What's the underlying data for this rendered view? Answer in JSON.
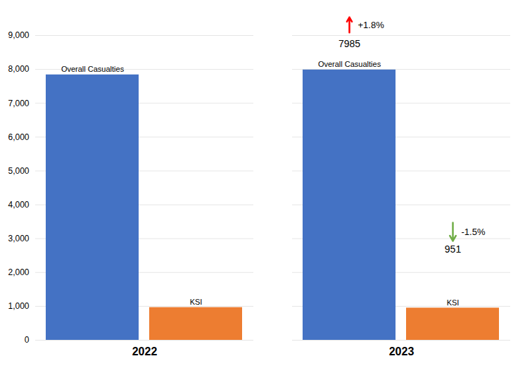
{
  "chart_data": {
    "type": "bar",
    "categories": [
      "2022",
      "2023"
    ],
    "series": [
      {
        "name": "Overall Casualties",
        "color": "#4472C4",
        "values": [
          7840,
          7985
        ]
      },
      {
        "name": "KSI",
        "color": "#ED7D31",
        "values": [
          966,
          951
        ]
      }
    ],
    "ylim": [
      0,
      9000
    ],
    "yticks": [
      0,
      1000,
      2000,
      3000,
      4000,
      5000,
      6000,
      7000,
      8000,
      9000
    ],
    "grid": true,
    "annotations": [
      {
        "category": "2023",
        "series": "Overall Casualties",
        "arrow": "up",
        "color": "#FF0000",
        "text": "+1.8%",
        "label": "7985"
      },
      {
        "category": "2023",
        "series": "KSI",
        "arrow": "down",
        "color": "#70AD47",
        "text": "-1.5%",
        "label": "951"
      }
    ]
  }
}
